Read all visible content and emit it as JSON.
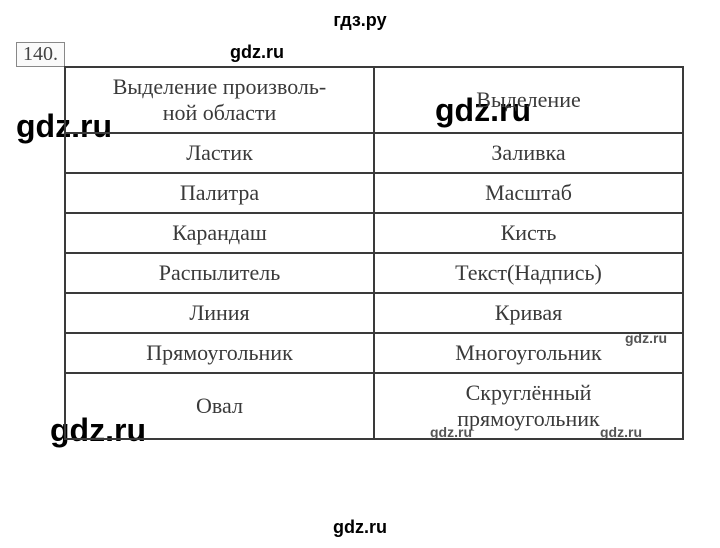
{
  "page": {
    "header": "гдз.ру",
    "footer": "gdz.ru",
    "task_number": "140."
  },
  "watermarks": {
    "w1": "gdz.ru",
    "w2": "gdz.ru",
    "w3": "gdz.ru",
    "w4": "gdz.ru",
    "w5": "gdz.ru",
    "w6": "gdz.ru",
    "w7": "gdz.ru"
  },
  "table": {
    "rows": [
      {
        "c1": "Выделение произволь-\nной области",
        "c2": "Выделение"
      },
      {
        "c1": "Ластик",
        "c2": "Заливка"
      },
      {
        "c1": "Палитра",
        "c2": "Масштаб"
      },
      {
        "c1": "Карандаш",
        "c2": "Кисть"
      },
      {
        "c1": "Распылитель",
        "c2": "Текст(Надпись)"
      },
      {
        "c1": "Линия",
        "c2": "Кривая"
      },
      {
        "c1": "Прямоугольник",
        "c2": "Многоугольник"
      },
      {
        "c1": "Овал",
        "c2": "Скруглённый\nпрямоугольник"
      }
    ],
    "border_color": "#3a3a3a",
    "text_color": "#3a3a3a",
    "cell_fontsize": 22,
    "col_widths": [
      "50%",
      "50%"
    ]
  }
}
